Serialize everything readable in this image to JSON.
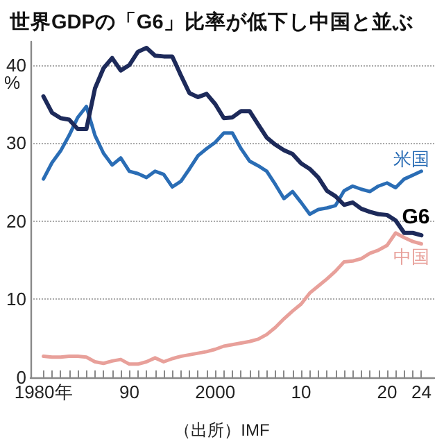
{
  "chart_data": {
    "type": "line",
    "title": "世界GDPの「G6」比率が低下し中国と並ぶ",
    "ylabel": "%",
    "annotations": [
      "（出所）IMF"
    ],
    "x": [
      1980,
      1981,
      1982,
      1983,
      1984,
      1985,
      1986,
      1987,
      1988,
      1989,
      1990,
      1991,
      1992,
      1993,
      1994,
      1995,
      1996,
      1997,
      1998,
      1999,
      2000,
      2001,
      2002,
      2003,
      2004,
      2005,
      2006,
      2007,
      2008,
      2009,
      2010,
      2011,
      2012,
      2013,
      2014,
      2015,
      2016,
      2017,
      2018,
      2019,
      2020,
      2021,
      2022,
      2023,
      2024
    ],
    "series": [
      {
        "name": "米国",
        "color": "#2a6db5",
        "values": [
          25.4,
          27.5,
          29.0,
          31.0,
          33.3,
          34.7,
          31.0,
          28.7,
          27.2,
          28.1,
          26.4,
          26.1,
          25.6,
          26.4,
          26.0,
          24.4,
          25.1,
          26.7,
          28.4,
          29.3,
          30.1,
          31.3,
          31.3,
          29.3,
          27.7,
          27.1,
          26.4,
          24.7,
          22.9,
          23.8,
          22.4,
          20.9,
          21.5,
          21.7,
          22.0,
          23.9,
          24.5,
          24.1,
          23.8,
          24.5,
          24.9,
          24.3,
          25.4,
          25.9,
          26.4
        ]
      },
      {
        "name": "G6",
        "color": "#1d2a5a",
        "values": [
          36.0,
          33.9,
          33.2,
          33.0,
          31.8,
          31.8,
          37.0,
          39.6,
          40.9,
          39.3,
          40.0,
          41.7,
          42.2,
          41.2,
          41.1,
          41.1,
          38.7,
          36.4,
          35.9,
          36.3,
          35.0,
          33.2,
          33.3,
          34.1,
          34.1,
          32.4,
          30.7,
          29.8,
          29.1,
          28.6,
          27.4,
          26.7,
          25.6,
          23.9,
          23.2,
          22.1,
          22.4,
          21.6,
          21.2,
          20.9,
          20.8,
          20.1,
          18.5,
          18.5,
          18.2
        ]
      },
      {
        "name": "中国",
        "color": "#e8a09a",
        "values": [
          2.7,
          2.6,
          2.6,
          2.7,
          2.7,
          2.6,
          2.0,
          1.8,
          2.1,
          2.3,
          1.7,
          1.7,
          2.0,
          2.5,
          2.0,
          2.4,
          2.7,
          2.9,
          3.1,
          3.3,
          3.6,
          4.0,
          4.2,
          4.4,
          4.6,
          4.9,
          5.5,
          6.4,
          7.5,
          8.5,
          9.4,
          10.8,
          11.7,
          12.6,
          13.6,
          14.8,
          14.9,
          15.2,
          15.9,
          16.3,
          16.9,
          18.5,
          17.9,
          17.4,
          17.1
        ]
      }
    ],
    "xlim": [
      1978.5,
      2025.5
    ],
    "xticks": [
      {
        "value": 1980,
        "label": "1980年"
      },
      {
        "value": 1981,
        "label": null
      },
      {
        "value": 1982,
        "label": null
      },
      {
        "value": 1983,
        "label": null
      },
      {
        "value": 1984,
        "label": null
      },
      {
        "value": 1985,
        "label": null
      },
      {
        "value": 1986,
        "label": null
      },
      {
        "value": 1987,
        "label": null
      },
      {
        "value": 1988,
        "label": null
      },
      {
        "value": 1989,
        "label": null
      },
      {
        "value": 1990,
        "label": "90"
      },
      {
        "value": 1991,
        "label": null
      },
      {
        "value": 1992,
        "label": null
      },
      {
        "value": 1993,
        "label": null
      },
      {
        "value": 1994,
        "label": null
      },
      {
        "value": 1995,
        "label": null
      },
      {
        "value": 1996,
        "label": null
      },
      {
        "value": 1997,
        "label": null
      },
      {
        "value": 1998,
        "label": null
      },
      {
        "value": 1999,
        "label": null
      },
      {
        "value": 2000,
        "label": "2000"
      },
      {
        "value": 2001,
        "label": null
      },
      {
        "value": 2002,
        "label": null
      },
      {
        "value": 2003,
        "label": null
      },
      {
        "value": 2004,
        "label": null
      },
      {
        "value": 2005,
        "label": null
      },
      {
        "value": 2006,
        "label": null
      },
      {
        "value": 2007,
        "label": null
      },
      {
        "value": 2008,
        "label": null
      },
      {
        "value": 2009,
        "label": null
      },
      {
        "value": 2010,
        "label": "10"
      },
      {
        "value": 2011,
        "label": null
      },
      {
        "value": 2012,
        "label": null
      },
      {
        "value": 2013,
        "label": null
      },
      {
        "value": 2014,
        "label": null
      },
      {
        "value": 2015,
        "label": null
      },
      {
        "value": 2016,
        "label": null
      },
      {
        "value": 2017,
        "label": null
      },
      {
        "value": 2018,
        "label": null
      },
      {
        "value": 2019,
        "label": null
      },
      {
        "value": 2020,
        "label": "20"
      },
      {
        "value": 2021,
        "label": null
      },
      {
        "value": 2022,
        "label": null
      },
      {
        "value": 2023,
        "label": null
      },
      {
        "value": 2024,
        "label": "24"
      }
    ],
    "ylim": [
      0,
      43
    ],
    "yticks": [
      0,
      10,
      20,
      30,
      40
    ],
    "grid": "y",
    "legend": false,
    "marker": "none",
    "line_style": "solid"
  }
}
